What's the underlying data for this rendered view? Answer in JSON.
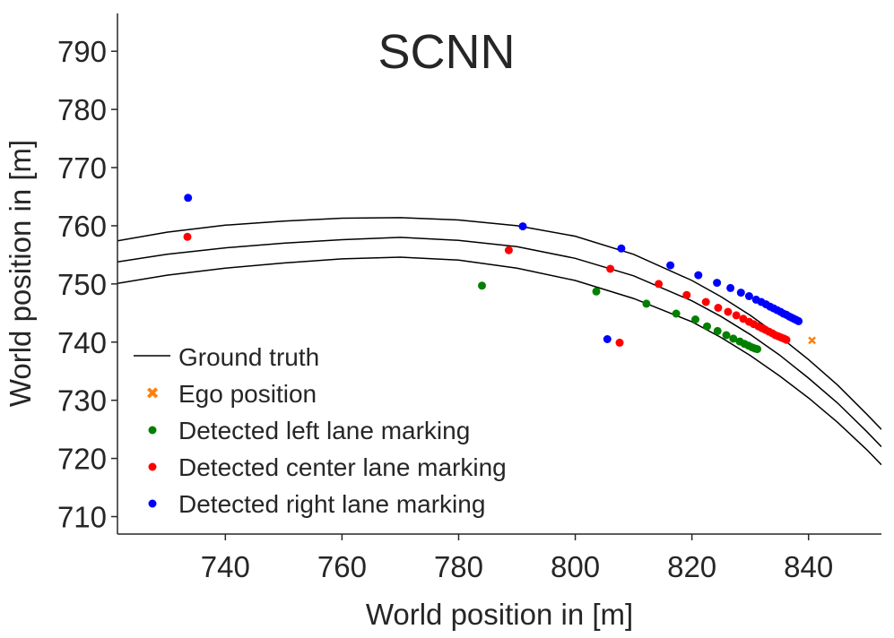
{
  "chart_data": {
    "type": "scatter",
    "title": "SCNN",
    "xlabel": "World position in [m]",
    "ylabel": "World position in [m]",
    "xlim": [
      721.5,
      852.5
    ],
    "ylim": [
      707,
      796.5
    ],
    "xticks": [
      740,
      760,
      780,
      800,
      820,
      840
    ],
    "yticks": [
      710,
      720,
      730,
      740,
      750,
      760,
      770,
      780,
      790
    ],
    "grid": false,
    "legend_position": "bottom-left",
    "colors": {
      "ground_truth": "#000000",
      "ego": "#ff7f0e",
      "left": "#008000",
      "center": "#ff0000",
      "right": "#0000ff",
      "axis": "#262626"
    },
    "legend": [
      {
        "label": "Ground truth",
        "key": "ground_truth",
        "marker": "line"
      },
      {
        "label": "Ego position",
        "key": "ego",
        "marker": "x"
      },
      {
        "label": "Detected left lane marking",
        "key": "left",
        "marker": "dot"
      },
      {
        "label": "Detected center lane marking",
        "key": "center",
        "marker": "dot"
      },
      {
        "label": "Detected right lane marking",
        "key": "right",
        "marker": "dot"
      }
    ],
    "ground_truth": [
      {
        "name": "upper boundary",
        "points": [
          [
            721.5,
            757.4
          ],
          [
            730,
            758.9
          ],
          [
            740,
            760.1
          ],
          [
            750,
            760.8
          ],
          [
            760,
            761.3
          ],
          [
            770,
            761.4
          ],
          [
            780,
            761.0
          ],
          [
            790,
            760.0
          ],
          [
            800,
            758.2
          ],
          [
            810,
            755.1
          ],
          [
            820,
            750.6
          ],
          [
            825,
            747.8
          ],
          [
            830,
            744.6
          ],
          [
            835,
            741.0
          ],
          [
            840,
            737.0
          ],
          [
            845,
            732.6
          ],
          [
            850,
            727.6
          ],
          [
            852.5,
            725.0
          ]
        ]
      },
      {
        "name": "center line",
        "points": [
          [
            721.5,
            753.8
          ],
          [
            730,
            755.1
          ],
          [
            740,
            756.2
          ],
          [
            750,
            757.0
          ],
          [
            760,
            757.6
          ],
          [
            770,
            758.0
          ],
          [
            780,
            757.5
          ],
          [
            790,
            756.4
          ],
          [
            800,
            754.4
          ],
          [
            810,
            751.4
          ],
          [
            820,
            747.1
          ],
          [
            825,
            744.4
          ],
          [
            830,
            741.3
          ],
          [
            835,
            737.8
          ],
          [
            840,
            733.8
          ],
          [
            845,
            729.5
          ],
          [
            850,
            724.6
          ],
          [
            852.5,
            722.0
          ]
        ]
      },
      {
        "name": "lower boundary",
        "points": [
          [
            721.5,
            750.1
          ],
          [
            730,
            751.5
          ],
          [
            740,
            752.7
          ],
          [
            750,
            753.6
          ],
          [
            760,
            754.3
          ],
          [
            770,
            754.6
          ],
          [
            780,
            754.1
          ],
          [
            790,
            752.7
          ],
          [
            800,
            750.6
          ],
          [
            810,
            747.5
          ],
          [
            820,
            743.5
          ],
          [
            825,
            740.8
          ],
          [
            830,
            737.7
          ],
          [
            835,
            734.2
          ],
          [
            840,
            730.4
          ],
          [
            845,
            726.2
          ],
          [
            850,
            721.5
          ],
          [
            852.5,
            718.9
          ]
        ]
      }
    ],
    "ego_position": [
      [
        840.6,
        740.3
      ]
    ],
    "left_markings": [
      [
        784.0,
        749.7
      ],
      [
        803.6,
        748.7
      ],
      [
        812.2,
        746.6
      ],
      [
        817.3,
        744.9
      ],
      [
        820.6,
        743.9
      ],
      [
        822.6,
        742.7
      ],
      [
        824.4,
        741.9
      ],
      [
        825.9,
        741.2
      ],
      [
        827.1,
        740.6
      ],
      [
        828.2,
        740.1
      ],
      [
        829.0,
        739.7
      ],
      [
        829.7,
        739.4
      ],
      [
        830.3,
        739.1
      ],
      [
        830.8,
        738.9
      ],
      [
        831.2,
        738.8
      ]
    ],
    "center_markings": [
      [
        733.5,
        758.1
      ],
      [
        788.6,
        755.8
      ],
      [
        806.0,
        752.6
      ],
      [
        807.6,
        739.9
      ],
      [
        814.3,
        750.0
      ],
      [
        819.1,
        748.1
      ],
      [
        822.4,
        746.9
      ],
      [
        824.5,
        745.9
      ],
      [
        826.2,
        745.2
      ],
      [
        827.6,
        744.6
      ],
      [
        828.8,
        744.0
      ],
      [
        829.8,
        743.5
      ],
      [
        830.6,
        743.1
      ],
      [
        831.4,
        742.7
      ],
      [
        832.0,
        742.4
      ],
      [
        832.6,
        742.1
      ],
      [
        833.2,
        741.8
      ],
      [
        833.8,
        741.5
      ],
      [
        834.3,
        741.2
      ],
      [
        834.8,
        741.0
      ],
      [
        835.3,
        740.8
      ],
      [
        835.8,
        740.6
      ],
      [
        836.2,
        740.4
      ]
    ],
    "right_markings": [
      [
        733.6,
        764.8
      ],
      [
        791.0,
        759.9
      ],
      [
        805.5,
        740.5
      ],
      [
        807.9,
        756.1
      ],
      [
        816.3,
        753.2
      ],
      [
        821.1,
        751.5
      ],
      [
        824.3,
        750.2
      ],
      [
        826.6,
        749.3
      ],
      [
        828.4,
        748.5
      ],
      [
        829.8,
        747.9
      ],
      [
        831.0,
        747.3
      ],
      [
        831.9,
        746.9
      ],
      [
        832.7,
        746.5
      ],
      [
        833.4,
        746.1
      ],
      [
        834.0,
        745.8
      ],
      [
        834.6,
        745.5
      ],
      [
        835.2,
        745.2
      ],
      [
        835.7,
        744.9
      ],
      [
        836.2,
        744.7
      ],
      [
        836.7,
        744.4
      ],
      [
        837.1,
        744.2
      ],
      [
        837.5,
        744.0
      ],
      [
        837.9,
        743.8
      ],
      [
        838.3,
        743.6
      ]
    ]
  }
}
